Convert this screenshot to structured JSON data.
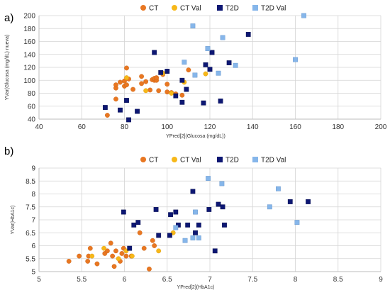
{
  "chart_data": [
    {
      "type": "scatter",
      "panel_label": "a)",
      "xlabel": "YPred[2](Glucosa (mg/dL))",
      "ylabel": "YVar(Glucosa (mg/dL) nueva)",
      "xlim": [
        40,
        200
      ],
      "ylim": [
        40,
        200
      ],
      "xticks": [
        40,
        60,
        80,
        100,
        120,
        140,
        160,
        180,
        200
      ],
      "yticks": [
        40,
        60,
        80,
        100,
        120,
        140,
        160,
        180,
        200
      ],
      "grid": true,
      "legend_position": "top-center",
      "series": [
        {
          "name": "CT",
          "marker": "circle",
          "color": "#e87722",
          "points": [
            [
              72,
              46
            ],
            [
              76,
              88
            ],
            [
              76,
              93
            ],
            [
              76,
              71
            ],
            [
              78,
              97
            ],
            [
              80,
              91
            ],
            [
              80,
              99
            ],
            [
              81,
              93
            ],
            [
              81,
              119
            ],
            [
              82,
              102
            ],
            [
              84,
              86
            ],
            [
              88,
              95
            ],
            [
              88,
              106
            ],
            [
              90,
              98
            ],
            [
              92,
              85
            ],
            [
              93,
              101
            ],
            [
              94,
              100
            ],
            [
              94,
              103
            ],
            [
              95,
              100
            ],
            [
              95,
              104
            ],
            [
              96,
              84
            ],
            [
              98,
              109
            ],
            [
              100,
              94
            ],
            [
              100,
              82
            ],
            [
              102,
              81
            ],
            [
              104,
              79
            ],
            [
              107,
              77
            ],
            [
              110,
              116
            ]
          ]
        },
        {
          "name": "CT Val",
          "marker": "circle",
          "color": "#f7b819",
          "points": [
            [
              81,
              104
            ],
            [
              90,
              84
            ],
            [
              98,
              111
            ],
            [
              102,
              80
            ],
            [
              108,
              97
            ],
            [
              118,
              110
            ]
          ]
        },
        {
          "name": "T2D",
          "marker": "square",
          "color": "#0d1773",
          "points": [
            [
              71,
              58
            ],
            [
              78,
              54
            ],
            [
              81,
              69
            ],
            [
              82,
              39
            ],
            [
              86,
              52
            ],
            [
              94,
              143
            ],
            [
              97,
              112
            ],
            [
              100,
              114
            ],
            [
              104,
              76
            ],
            [
              107,
              66
            ],
            [
              107,
              100
            ],
            [
              109,
              86
            ],
            [
              117,
              65
            ],
            [
              118,
              124
            ],
            [
              120,
              117
            ],
            [
              121,
              143
            ],
            [
              125,
              68
            ],
            [
              129,
              127
            ],
            [
              138,
              171
            ]
          ]
        },
        {
          "name": "T2D Val",
          "marker": "square",
          "color": "#86b6ea",
          "points": [
            [
              108,
              128
            ],
            [
              112,
              184
            ],
            [
              113,
              108
            ],
            [
              119,
              149
            ],
            [
              124,
              111
            ],
            [
              126,
              166
            ],
            [
              132,
              123
            ],
            [
              160,
              132
            ],
            [
              164,
              200
            ]
          ]
        }
      ]
    },
    {
      "type": "scatter",
      "panel_label": "b)",
      "xlabel": "YPred[2](HbA1c)",
      "ylabel": "YVar(HbA1c)",
      "xlim": [
        5,
        9
      ],
      "ylim": [
        5,
        9
      ],
      "xticks": [
        5,
        5.5,
        6,
        6.5,
        7,
        7.5,
        8,
        8.5,
        9
      ],
      "yticks": [
        5,
        5.5,
        6,
        6.5,
        7,
        7.5,
        8,
        8.5,
        9
      ],
      "grid": true,
      "legend_position": "top-center",
      "series": [
        {
          "name": "CT",
          "marker": "circle",
          "color": "#e87722",
          "points": [
            [
              5.35,
              5.4
            ],
            [
              5.47,
              5.6
            ],
            [
              5.57,
              5.4
            ],
            [
              5.58,
              5.6
            ],
            [
              5.6,
              5.9
            ],
            [
              5.68,
              5.3
            ],
            [
              5.77,
              5.7
            ],
            [
              5.8,
              5.8
            ],
            [
              5.84,
              6.1
            ],
            [
              5.86,
              5.6
            ],
            [
              5.88,
              5.2
            ],
            [
              5.9,
              5.8
            ],
            [
              5.95,
              5.4
            ],
            [
              5.97,
              5.7
            ],
            [
              5.99,
              5.9
            ],
            [
              6.02,
              5.6
            ],
            [
              6.08,
              5.6
            ],
            [
              6.18,
              6.5
            ],
            [
              6.23,
              5.9
            ],
            [
              6.29,
              5.1
            ],
            [
              6.33,
              6.2
            ],
            [
              6.35,
              6.0
            ]
          ]
        },
        {
          "name": "CT Val",
          "marker": "circle",
          "color": "#f7b819",
          "points": [
            [
              5.62,
              5.6
            ],
            [
              5.76,
              5.9
            ],
            [
              5.93,
              5.5
            ],
            [
              6.02,
              5.8
            ],
            [
              6.09,
              5.6
            ],
            [
              6.4,
              5.8
            ],
            [
              6.57,
              6.5
            ]
          ]
        },
        {
          "name": "T2D",
          "marker": "square",
          "color": "#0d1773",
          "points": [
            [
              5.99,
              7.3
            ],
            [
              6.06,
              5.9
            ],
            [
              6.11,
              6.8
            ],
            [
              6.16,
              6.9
            ],
            [
              6.37,
              7.4
            ],
            [
              6.4,
              6.4
            ],
            [
              6.53,
              6.4
            ],
            [
              6.54,
              7.2
            ],
            [
              6.6,
              7.3
            ],
            [
              6.63,
              6.8
            ],
            [
              6.74,
              6.8
            ],
            [
              6.8,
              8.1
            ],
            [
              6.83,
              6.5
            ],
            [
              6.87,
              6.8
            ],
            [
              6.99,
              7.4
            ],
            [
              7.06,
              5.8
            ],
            [
              7.1,
              7.6
            ],
            [
              7.15,
              7.5
            ],
            [
              7.17,
              6.8
            ],
            [
              7.94,
              7.7
            ],
            [
              8.15,
              7.7
            ]
          ]
        },
        {
          "name": "T2D Val",
          "marker": "square",
          "color": "#86b6ea",
          "points": [
            [
              6.6,
              6.7
            ],
            [
              6.71,
              6.2
            ],
            [
              6.8,
              6.3
            ],
            [
              6.83,
              7.3
            ],
            [
              6.87,
              6.3
            ],
            [
              6.98,
              8.6
            ],
            [
              7.14,
              8.4
            ],
            [
              7.7,
              7.5
            ],
            [
              7.8,
              8.2
            ],
            [
              8.02,
              6.9
            ]
          ]
        }
      ]
    }
  ]
}
